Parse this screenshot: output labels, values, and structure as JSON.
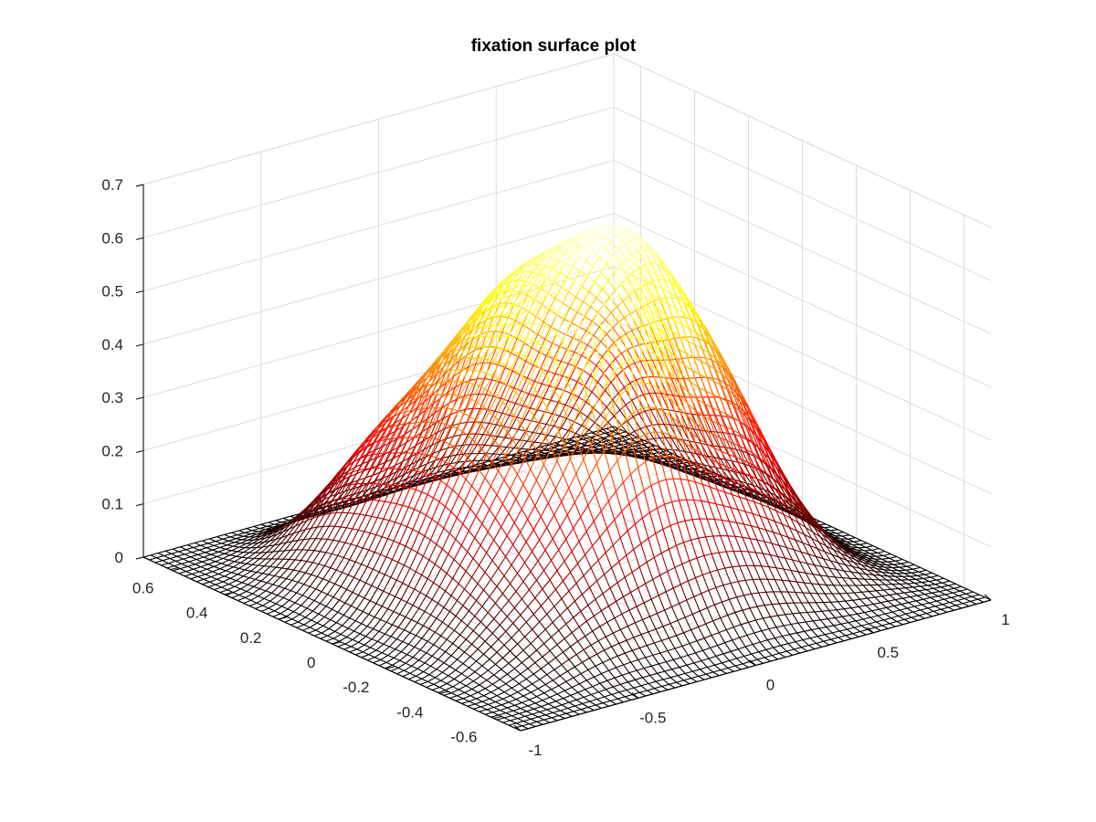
{
  "chart_data": {
    "type": "surface",
    "title": "fixation surface plot",
    "xlabel": "",
    "ylabel": "",
    "zlabel": "",
    "xlim": [
      -1,
      1
    ],
    "ylim": [
      -0.7,
      0.7
    ],
    "zlim": [
      0,
      0.7
    ],
    "x_ticks": [
      -1,
      -0.5,
      0,
      0.5,
      1
    ],
    "x_tick_labels": [
      "-1",
      "-0.5",
      "0",
      "0.5",
      "1"
    ],
    "y_ticks": [
      -0.6,
      -0.4,
      -0.2,
      0,
      0.2,
      0.4,
      0.6
    ],
    "y_tick_labels": [
      "-0.6",
      "-0.4",
      "-0.2",
      "0",
      "0.2",
      "0.4",
      "0.6"
    ],
    "z_ticks": [
      0,
      0.1,
      0.2,
      0.3,
      0.4,
      0.5,
      0.6,
      0.7
    ],
    "z_tick_labels": [
      "0",
      "0.1",
      "0.2",
      "0.3",
      "0.4",
      "0.5",
      "0.6",
      "0.7"
    ],
    "grid": true,
    "colormap": "hot",
    "colors": {
      "low": "#000000",
      "mid": "#ff0000",
      "high": "#ffff00",
      "peak": "#ffffff",
      "axis": "#262626",
      "grid": "#dcdcdc"
    },
    "surface_peak_value": 0.64,
    "surface_estimated_peaks": [
      {
        "x": -0.05,
        "y": -0.2,
        "z": 0.64
      },
      {
        "x": 0.35,
        "y": 0.05,
        "z": 0.6
      },
      {
        "x": 0.55,
        "y": -0.1,
        "z": 0.55
      },
      {
        "x": 0.1,
        "y": 0.3,
        "z": 0.48
      },
      {
        "x": -0.5,
        "y": 0.35,
        "z": 0.4
      },
      {
        "x": 0.55,
        "y": 0.3,
        "z": 0.5
      }
    ]
  }
}
